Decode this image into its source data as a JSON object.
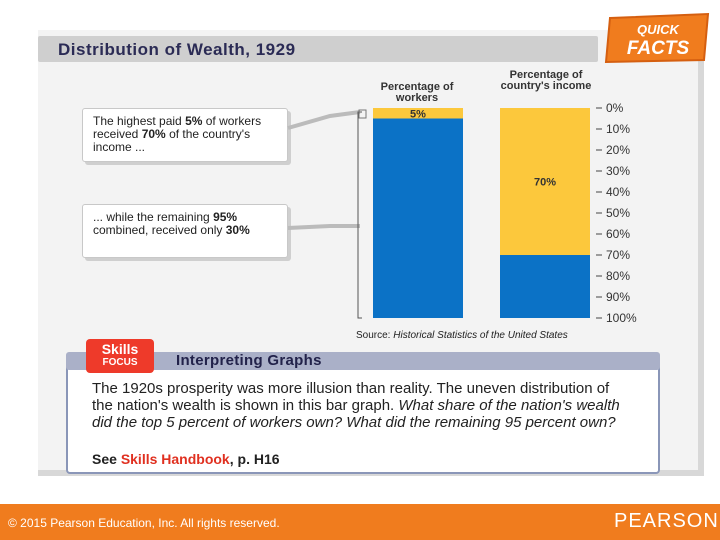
{
  "title": "Distribution of Wealth, 1929",
  "badge": {
    "line1": "QUICK",
    "line2": "FACTS"
  },
  "callouts": [
    {
      "pre": "The highest paid ",
      "b1": "5%",
      "mid1": " of workers received ",
      "b2": "70%",
      "mid2": " of the country's income ..."
    },
    {
      "pre": "... while the remaining ",
      "b1": "95%",
      "mid1": " combined, received only ",
      "b2": "30%",
      "mid2": ""
    }
  ],
  "chart_data": {
    "type": "bar",
    "stacked": true,
    "orientation": "vertical",
    "categories": [
      "Percentage of workers",
      "Percentage of country's income"
    ],
    "series": [
      {
        "values": [
          5,
          70
        ],
        "color": "#fcc83c"
      },
      {
        "values": [
          95,
          30
        ],
        "color": "#0b72c6"
      }
    ],
    "data_labels": [
      "5%",
      "70%"
    ],
    "axis": {
      "side": "right",
      "ticks": [
        "0%",
        "10%",
        "20%",
        "30%",
        "40%",
        "50%",
        "60%",
        "70%",
        "80%",
        "90%",
        "100%"
      ],
      "range": [
        0,
        100
      ],
      "inverted": true
    },
    "source_prefix": "Source: ",
    "source_title": "Historical Statistics of the United States"
  },
  "skills": {
    "badge_line1": "Skills",
    "badge_line2": "FOCUS",
    "heading": "Interpreting Graphs",
    "text_plain": "The 1920s prosperity was more illusion than reality. The uneven distribution of the nation's wealth is shown in this bar graph. ",
    "text_italic": "What share of the nation's wealth did the top 5 percent of workers own? What did the remaining 95 percent own?",
    "ref_prefix": "See ",
    "ref_link": "Skills Handbook",
    "ref_suffix": ", p. H16"
  },
  "footer": {
    "copyright": "© 2015  Pearson Education, Inc. All rights reserved.",
    "brand": "PEARSON"
  }
}
